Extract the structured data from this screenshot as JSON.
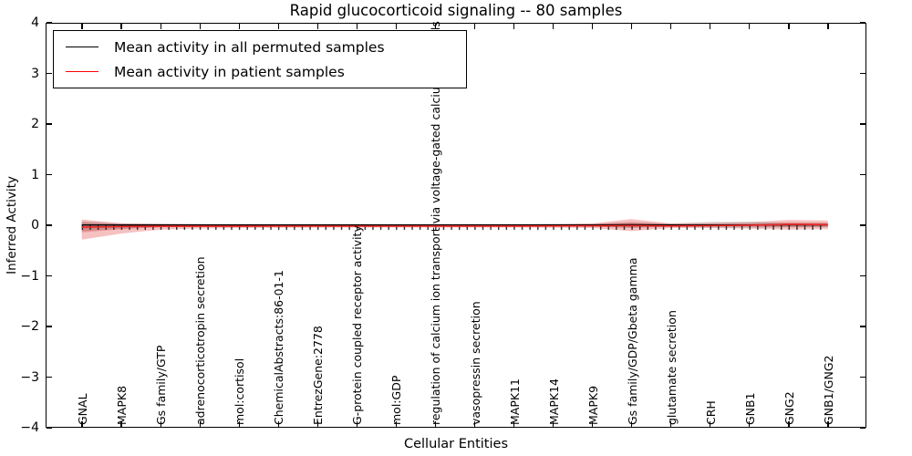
{
  "title": "Rapid glucocorticoid signaling -- 80 samples",
  "axes": {
    "xlabel": "Cellular Entities",
    "ylabel": "Inferred Activity"
  },
  "legend": {
    "items": [
      {
        "label": "Mean activity in all permuted samples",
        "color": "#000000"
      },
      {
        "label": "Mean activity in patient samples",
        "color": "#ff0000"
      }
    ]
  },
  "chart_data": {
    "type": "line",
    "title": "Rapid glucocorticoid signaling -- 80 samples",
    "xlabel": "Cellular Entities",
    "ylabel": "Inferred Activity",
    "ylim": [
      -4,
      4
    ],
    "yticks": [
      4,
      3,
      2,
      1,
      0,
      -1,
      -2,
      -3,
      -4
    ],
    "grid": false,
    "legend_position": "upper left",
    "categories": [
      "GNAL",
      "MAPK8",
      "Gs family/GTP",
      "adrenocorticotropin secretion",
      "mol:cortisol",
      "ChemicalAbstracts:86-01-1",
      "EntrezGene:2778",
      "G-protein coupled receptor activity",
      "mol:GDP",
      "regulation of calcium ion transport via voltage-gated calcium channels",
      "vasopressin secretion",
      "MAPK11",
      "MAPK14",
      "MAPK9",
      "Gs family/GDP/Gbeta gamma",
      "glutamate secretion",
      "CRH",
      "GNB1",
      "GNG2",
      "GNB1/GNG2"
    ],
    "series": [
      {
        "name": "Mean activity in all permuted samples",
        "color": "#000000",
        "values": [
          0.0,
          0.0,
          0.0,
          0.0,
          0.0,
          0.0,
          0.0,
          0.0,
          0.0,
          0.0,
          0.0,
          0.0,
          0.0,
          0.0,
          0.005,
          0.0,
          0.0,
          0.0,
          0.003,
          0.003
        ]
      },
      {
        "name": "Mean activity in patient samples",
        "color": "#ee2222",
        "values": [
          -0.045,
          -0.03,
          -0.026,
          -0.025,
          -0.025,
          -0.024,
          -0.024,
          -0.023,
          -0.023,
          -0.022,
          -0.022,
          -0.021,
          -0.02,
          -0.018,
          -0.012,
          -0.02,
          -0.015,
          -0.005,
          0.012,
          0.008
        ]
      }
    ],
    "bands": [
      {
        "name": "patient std band",
        "color": "#e02020",
        "alpha": 0.28,
        "upper": [
          0.11,
          0.035,
          0.022,
          0.018,
          0.016,
          0.015,
          0.015,
          0.014,
          0.013,
          0.013,
          0.014,
          0.015,
          0.02,
          0.03,
          0.115,
          0.03,
          0.04,
          0.055,
          0.1,
          0.09
        ],
        "lower": [
          -0.29,
          -0.17,
          -0.09,
          -0.07,
          -0.06,
          -0.055,
          -0.052,
          -0.05,
          -0.05,
          -0.05,
          -0.05,
          -0.05,
          -0.052,
          -0.06,
          -0.12,
          -0.06,
          -0.062,
          -0.07,
          -0.09,
          -0.08
        ]
      },
      {
        "name": "patient std inner band",
        "color": "#e02020",
        "alpha": 0.28,
        "upper": [
          0.055,
          0.018,
          0.011,
          0.009,
          0.008,
          0.008,
          0.008,
          0.007,
          0.007,
          0.007,
          0.007,
          0.008,
          0.01,
          0.015,
          0.058,
          0.015,
          0.02,
          0.028,
          0.05,
          0.045
        ],
        "lower": [
          -0.145,
          -0.085,
          -0.045,
          -0.035,
          -0.03,
          -0.028,
          -0.026,
          -0.025,
          -0.025,
          -0.025,
          -0.025,
          -0.025,
          -0.026,
          -0.03,
          -0.06,
          -0.03,
          -0.031,
          -0.035,
          -0.045,
          -0.04
        ]
      },
      {
        "name": "permuted std band",
        "color": "#777777",
        "alpha": 0.3,
        "upper": [
          0.07,
          0.03,
          0.025,
          0.022,
          0.02,
          0.02,
          0.02,
          0.02,
          0.02,
          0.02,
          0.02,
          0.02,
          0.022,
          0.025,
          0.045,
          0.03,
          0.06,
          0.065,
          0.04,
          0.04
        ],
        "lower": [
          -0.12,
          -0.07,
          -0.04,
          -0.03,
          -0.028,
          -0.026,
          -0.025,
          -0.025,
          -0.025,
          -0.025,
          -0.025,
          -0.025,
          -0.027,
          -0.03,
          -0.055,
          -0.035,
          -0.05,
          -0.055,
          -0.042,
          -0.04
        ]
      }
    ],
    "tick_markers": {
      "value": -0.05,
      "color": "#111111"
    }
  }
}
